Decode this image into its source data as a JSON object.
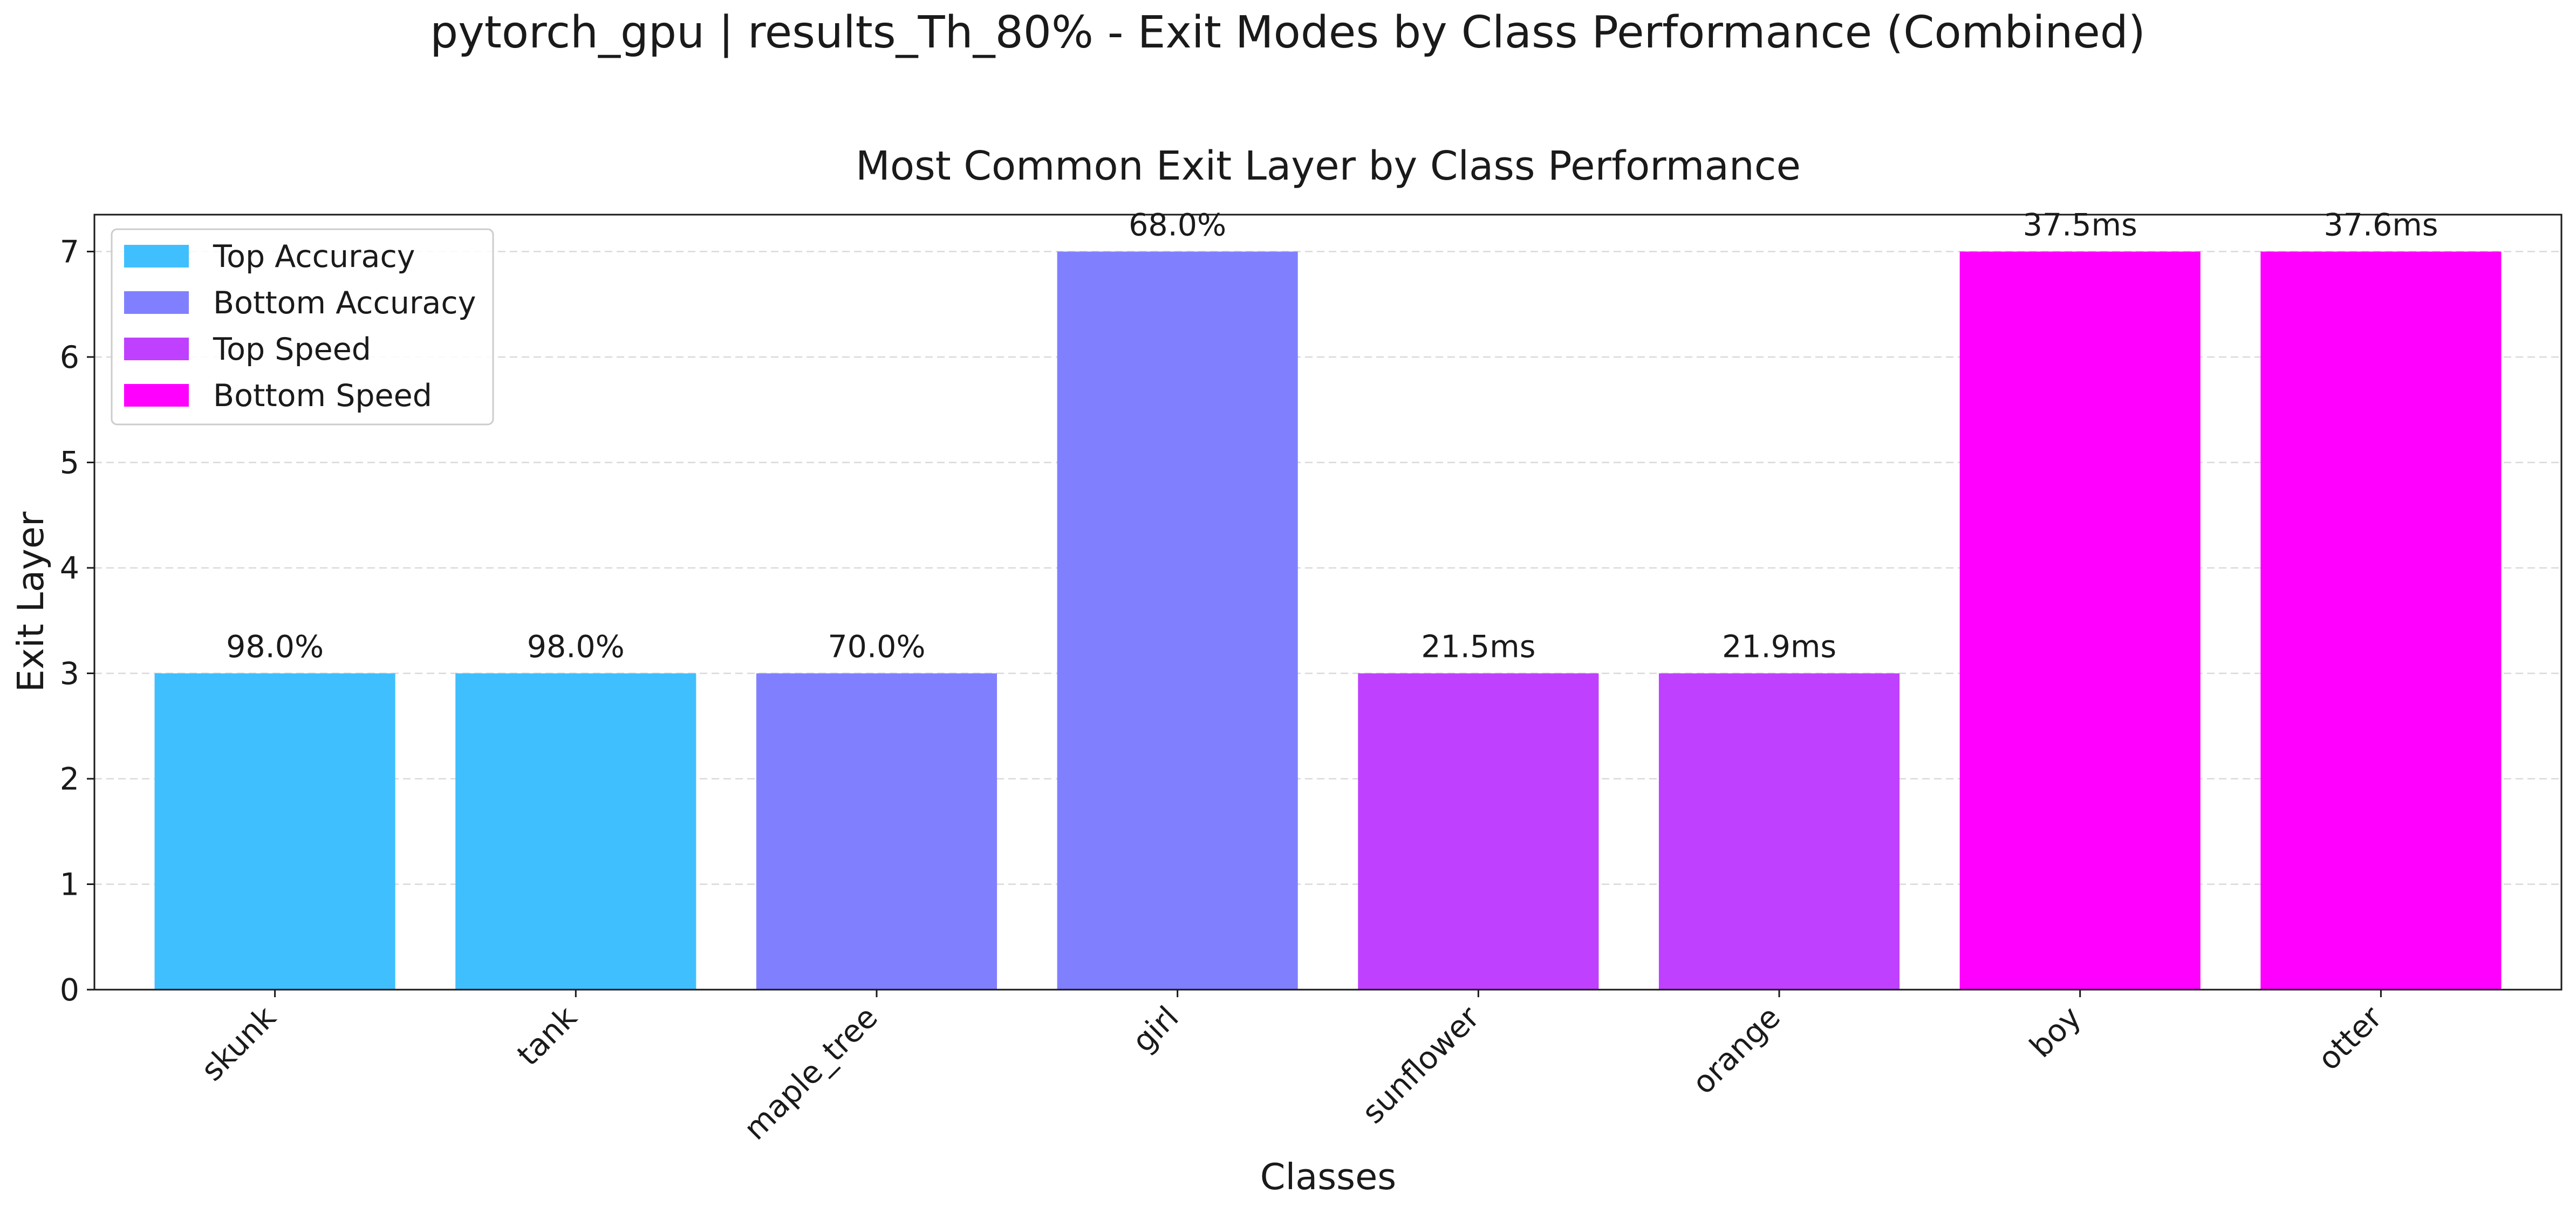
{
  "figure_title": "pytorch_gpu | results_Th_80% - Exit Modes by Class Performance (Combined)",
  "chart_data": {
    "type": "bar",
    "title": "Most Common Exit Layer by Class Performance",
    "xlabel": "Classes",
    "ylabel": "Exit Layer",
    "ylim": [
      0,
      7.35
    ],
    "yticks": [
      0,
      1,
      2,
      3,
      4,
      5,
      6,
      7
    ],
    "grid": "y-dashed",
    "legend_position": "top-left",
    "categories": [
      "skunk",
      "tank",
      "maple_tree",
      "girl",
      "sunflower",
      "orange",
      "boy",
      "otter"
    ],
    "values": [
      3,
      3,
      3,
      7,
      3,
      3,
      7,
      7
    ],
    "bar_labels": [
      "98.0%",
      "98.0%",
      "70.0%",
      "68.0%",
      "21.5ms",
      "21.9ms",
      "37.5ms",
      "37.6ms"
    ],
    "bar_groups": [
      "Top Accuracy",
      "Top Accuracy",
      "Bottom Accuracy",
      "Bottom Accuracy",
      "Top Speed",
      "Top Speed",
      "Bottom Speed",
      "Bottom Speed"
    ],
    "legend": [
      {
        "name": "Top Accuracy",
        "color": "#40bfff"
      },
      {
        "name": "Bottom Accuracy",
        "color": "#8080ff"
      },
      {
        "name": "Top Speed",
        "color": "#bf40ff"
      },
      {
        "name": "Bottom Speed",
        "color": "#ff00ff"
      }
    ]
  }
}
